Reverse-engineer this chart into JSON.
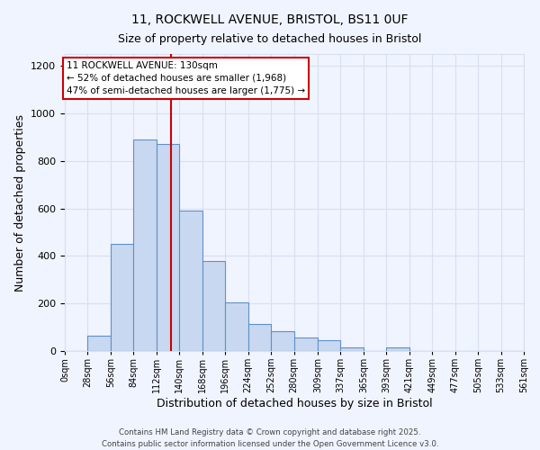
{
  "title": "11, ROCKWELL AVENUE, BRISTOL, BS11 0UF",
  "subtitle": "Size of property relative to detached houses in Bristol",
  "xlabel": "Distribution of detached houses by size in Bristol",
  "ylabel": "Number of detached properties",
  "bar_edges": [
    0,
    28,
    56,
    84,
    112,
    140,
    168,
    196,
    224,
    252,
    280,
    309,
    337,
    365,
    393,
    421,
    449,
    477,
    505,
    533,
    561
  ],
  "bar_heights": [
    0,
    65,
    450,
    890,
    870,
    590,
    380,
    205,
    115,
    85,
    55,
    45,
    15,
    0,
    15,
    0,
    0,
    0,
    0,
    0
  ],
  "bar_color": "#c8d8f0",
  "bar_edge_color": "#6090c8",
  "background_color": "#f0f4ff",
  "grid_color": "#d8dff0",
  "vline_x": 130,
  "vline_color": "#cc0000",
  "annotation_title": "11 ROCKWELL AVENUE: 130sqm",
  "annotation_line2": "← 52% of detached houses are smaller (1,968)",
  "annotation_line3": "47% of semi-detached houses are larger (1,775) →",
  "annotation_box_color": "#ffffff",
  "annotation_box_edge": "#cc0000",
  "ylim": [
    0,
    1250
  ],
  "yticks": [
    0,
    200,
    400,
    600,
    800,
    1000,
    1200
  ],
  "xtick_labels": [
    "0sqm",
    "28sqm",
    "56sqm",
    "84sqm",
    "112sqm",
    "140sqm",
    "168sqm",
    "196sqm",
    "224sqm",
    "252sqm",
    "280sqm",
    "309sqm",
    "337sqm",
    "365sqm",
    "393sqm",
    "421sqm",
    "449sqm",
    "477sqm",
    "505sqm",
    "533sqm",
    "561sqm"
  ],
  "footer_line1": "Contains HM Land Registry data © Crown copyright and database right 2025.",
  "footer_line2": "Contains public sector information licensed under the Open Government Licence v3.0.",
  "title_fontsize": 10,
  "subtitle_fontsize": 9
}
